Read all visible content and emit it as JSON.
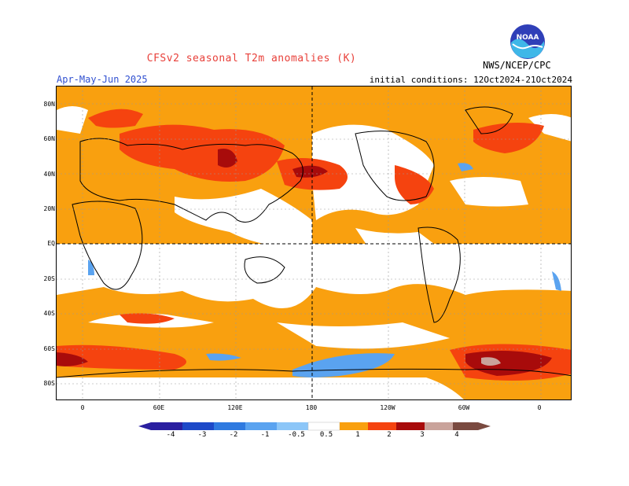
{
  "title": "CFSv2 seasonal T2m anomalies (K)",
  "period": "Apr-May-Jun 2025",
  "initial_conditions": "initial conditions: 12Oct2024-21Oct2024",
  "org": "NWS/NCEP/CPC",
  "logo_text": "NOAA",
  "lat_labels": [
    "80N",
    "60N",
    "40N",
    "20N",
    "EQ",
    "20S",
    "40S",
    "60S",
    "80S"
  ],
  "lon_labels": [
    "0",
    "60E",
    "120E",
    "180",
    "120W",
    "60W",
    "0"
  ],
  "legend_labels": [
    "-4",
    "-3",
    "-2",
    "-1",
    "-0.5",
    "0.5",
    "1",
    "2",
    "3",
    "4"
  ],
  "colors": {
    "neg4": "#2a1fa0",
    "neg3": "#1d49c8",
    "neg2": "#2f7ae0",
    "neg1": "#5aa3f0",
    "neg05": "#8cc6f8",
    "zero": "#ffffff",
    "pos05": "#f9a00f",
    "pos1": "#f5430f",
    "pos2": "#f02a05",
    "pos3": "#a80b0b",
    "pos4": "#c9a39b",
    "pos5": "#7a4a40"
  }
}
